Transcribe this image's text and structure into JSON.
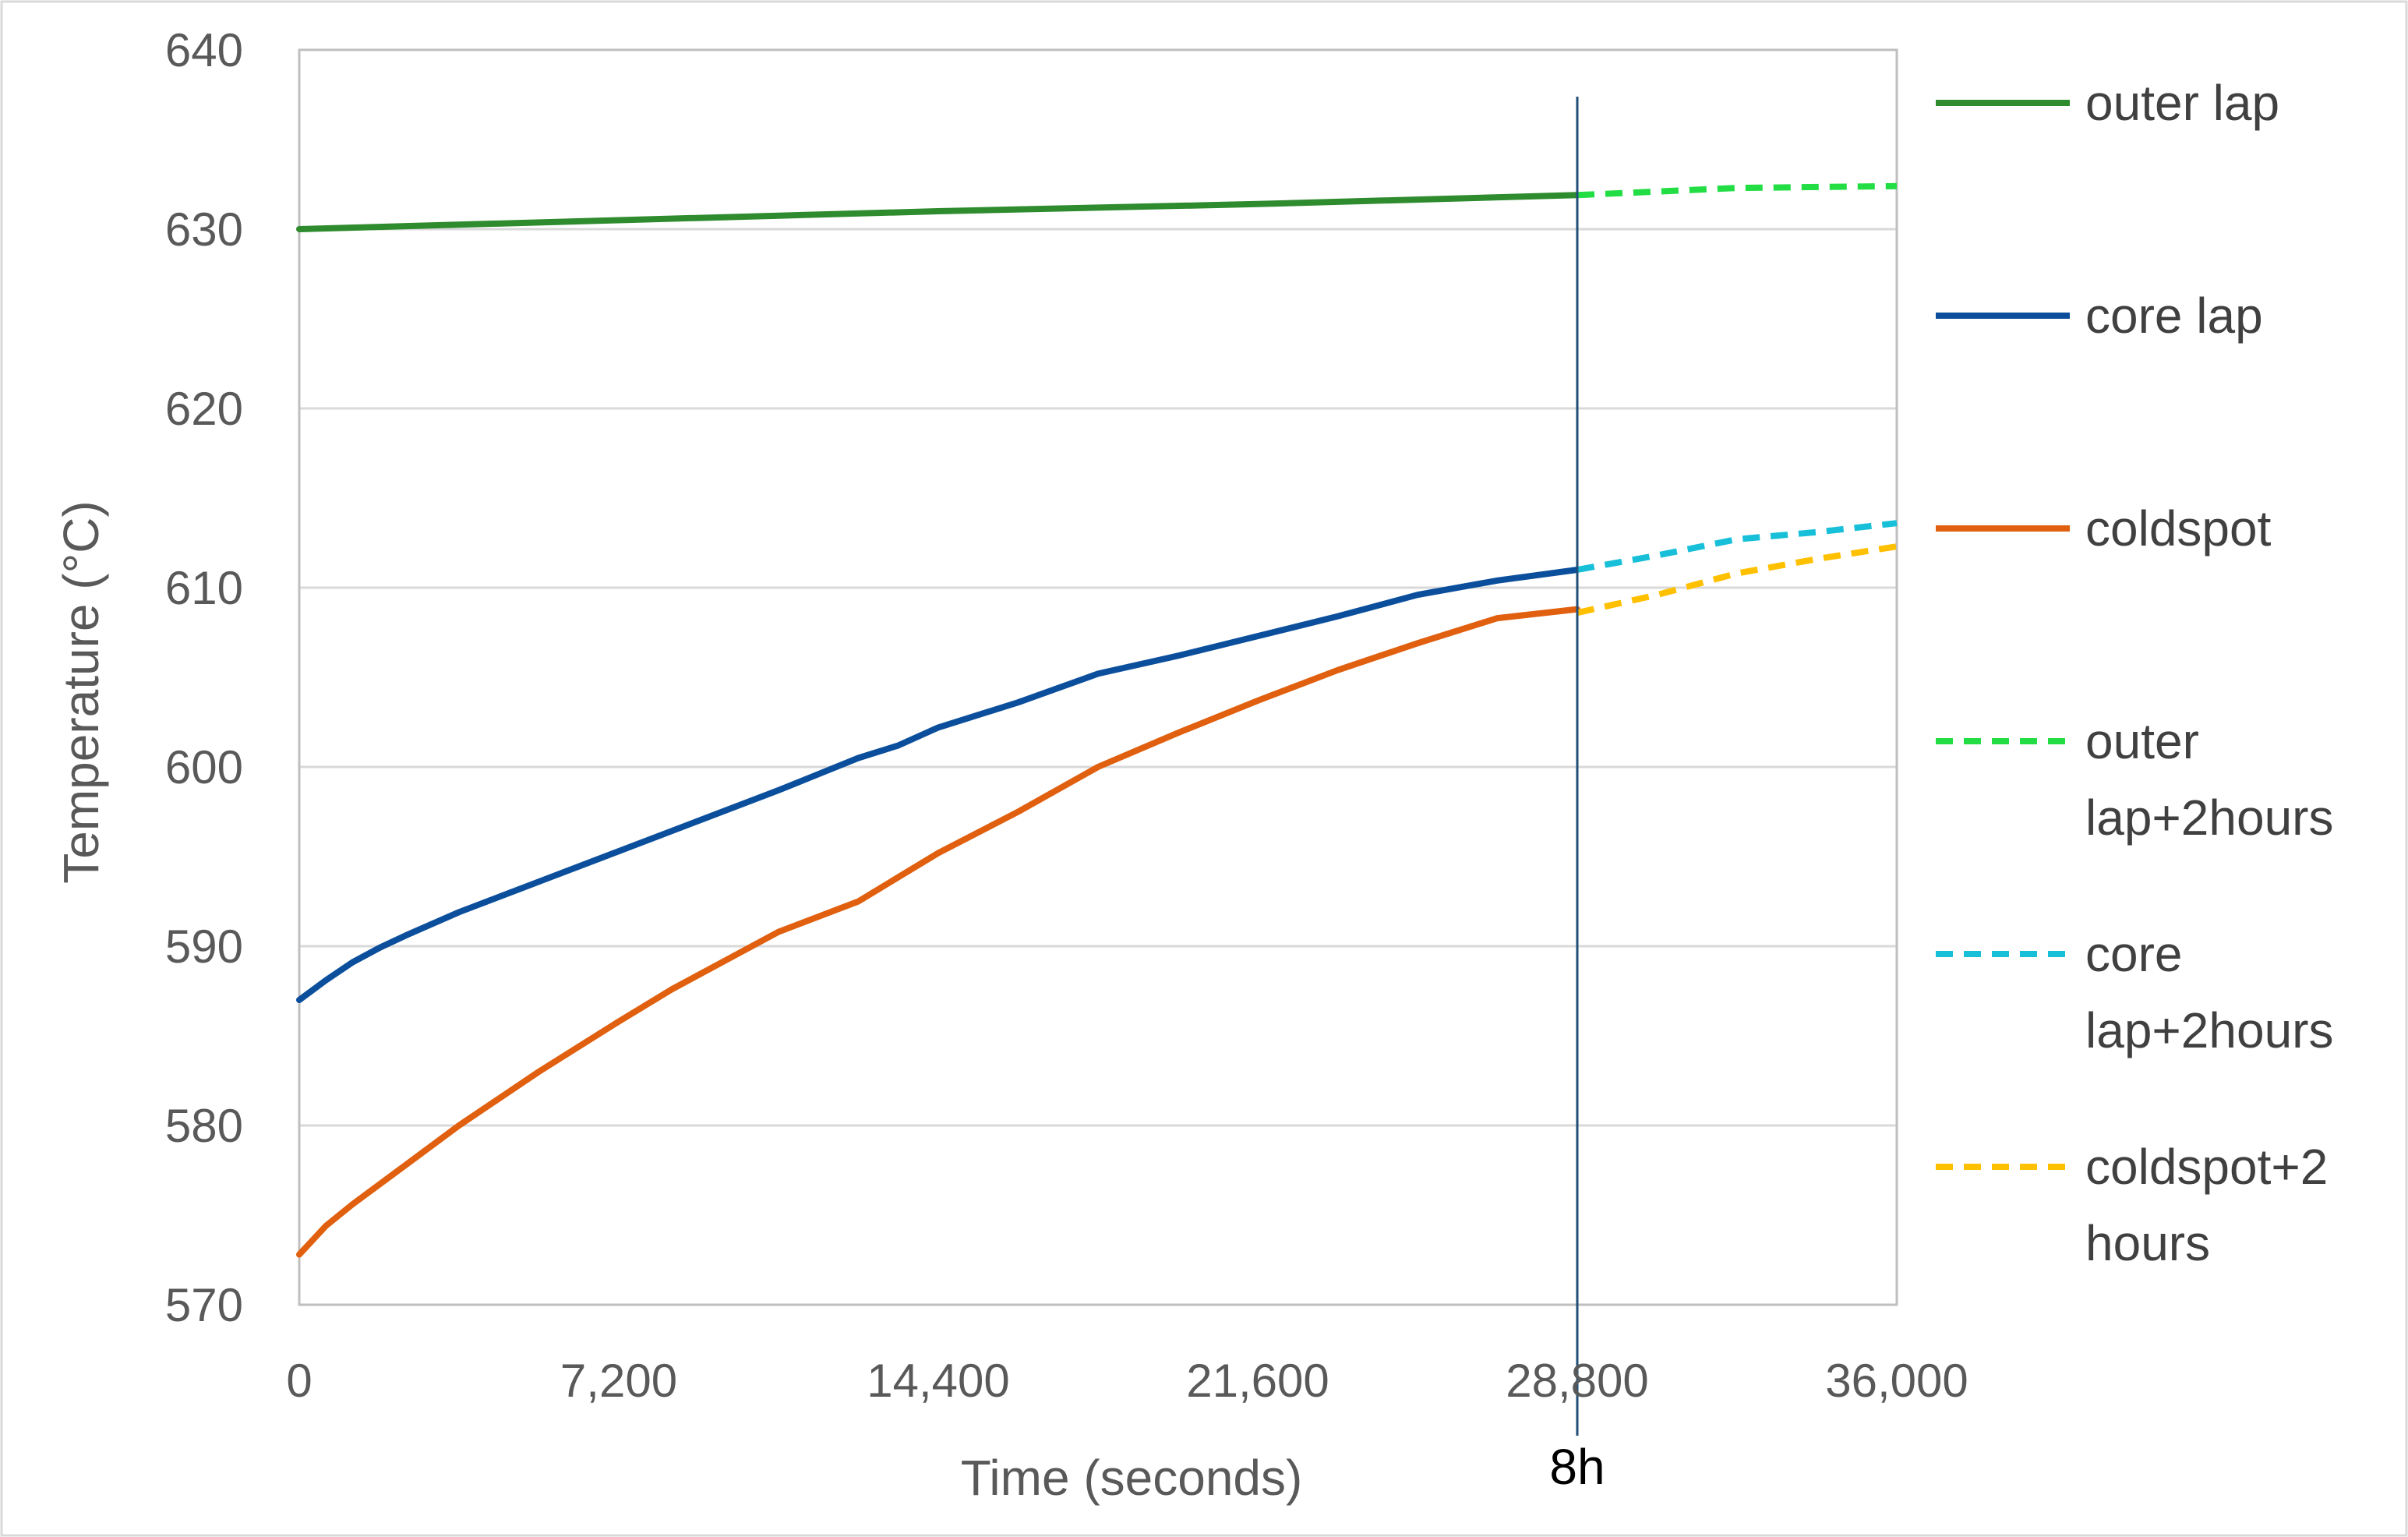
{
  "chart_data": {
    "type": "line",
    "title": "",
    "xlabel": "Time (seconds)",
    "ylabel": "Temperature (°C)",
    "xlim": [
      0,
      36000
    ],
    "ylim": [
      570,
      640
    ],
    "x_ticks": [
      0,
      7200,
      14400,
      21600,
      28800,
      36000
    ],
    "x_tick_labels": [
      "0",
      "7,200",
      "14,400",
      "21,600",
      "28,800",
      "36,000"
    ],
    "y_ticks": [
      570,
      580,
      590,
      600,
      610,
      620,
      630,
      640
    ],
    "y_tick_labels": [
      "570",
      "580",
      "590",
      "600",
      "610",
      "620",
      "630",
      "640"
    ],
    "grid": "horizontal",
    "legend_position": "right",
    "vertical_marker": {
      "x": 28800,
      "label": "8h",
      "color": "#1f4e79"
    },
    "series": [
      {
        "name": "outer lap",
        "color": "#2e8b2e",
        "style": "solid",
        "x": [
          0,
          7200,
          14400,
          21600,
          28800
        ],
        "y": [
          630.0,
          630.5,
          631.0,
          631.4,
          631.9
        ]
      },
      {
        "name": "core lap",
        "color": "#0b4f9c",
        "style": "solid",
        "x": [
          0,
          600,
          1200,
          1800,
          2400,
          3600,
          5400,
          7200,
          9000,
          10800,
          11700,
          12600,
          13500,
          14400,
          16200,
          18000,
          19800,
          21600,
          23400,
          25200,
          27000,
          28800
        ],
        "y": [
          587.0,
          588.1,
          589.1,
          589.9,
          590.6,
          591.9,
          593.6,
          595.3,
          597.0,
          598.7,
          599.6,
          600.5,
          601.2,
          602.2,
          603.6,
          605.2,
          606.2,
          607.3,
          608.4,
          609.6,
          610.4,
          611.0
        ]
      },
      {
        "name": "coldspot",
        "color": "#e0600f",
        "style": "solid",
        "x": [
          0,
          600,
          1200,
          2400,
          3600,
          5400,
          7200,
          8400,
          9600,
          10800,
          12600,
          14400,
          16200,
          18000,
          19800,
          21600,
          23400,
          25200,
          27000,
          28800
        ],
        "y": [
          572.8,
          574.4,
          575.6,
          577.8,
          580.0,
          583.0,
          585.8,
          587.6,
          589.2,
          590.8,
          592.5,
          595.2,
          597.5,
          600.0,
          601.9,
          603.7,
          605.4,
          606.9,
          608.3,
          608.8
        ]
      },
      {
        "name": "outer lap+2hours",
        "color": "#22dd44",
        "style": "dashed",
        "x": [
          28800,
          32400,
          36000
        ],
        "y": [
          631.9,
          632.3,
          632.4
        ]
      },
      {
        "name": "core lap+2hours",
        "color": "#17c0d8",
        "style": "dashed",
        "x": [
          28800,
          30600,
          32400,
          34200,
          36000
        ],
        "y": [
          611.0,
          611.8,
          612.7,
          613.1,
          613.6
        ]
      },
      {
        "name": "coldspot+2 hours",
        "color": "#ffc000",
        "style": "dashed",
        "x": [
          28800,
          30600,
          32400,
          34200,
          36000
        ],
        "y": [
          608.6,
          609.6,
          610.8,
          611.6,
          612.3
        ]
      }
    ]
  }
}
